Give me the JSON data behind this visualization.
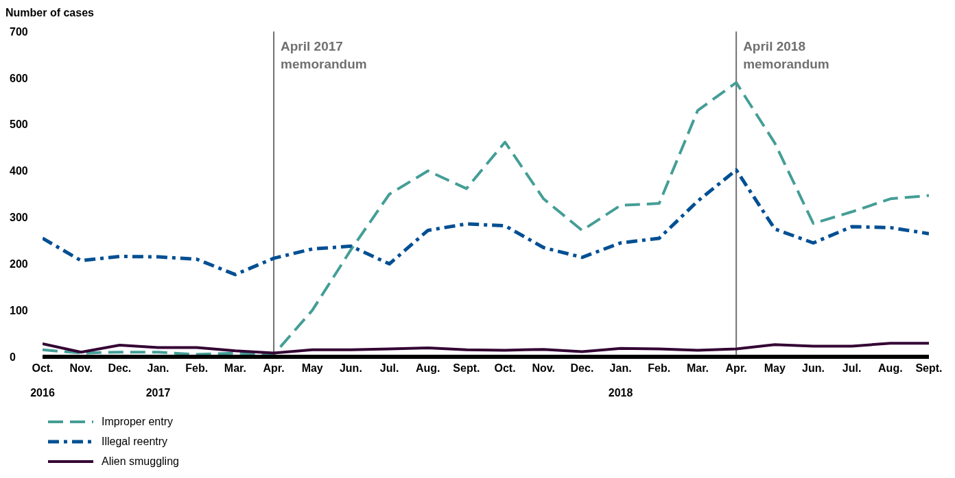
{
  "chart_data": {
    "type": "line",
    "ylabel": "Number of cases",
    "x": [
      "2016-10",
      "2016-11",
      "2016-12",
      "2017-01",
      "2017-02",
      "2017-03",
      "2017-04",
      "2017-05",
      "2017-06",
      "2017-07",
      "2017-08",
      "2017-09",
      "2017-10",
      "2017-11",
      "2017-12",
      "2018-01",
      "2018-02",
      "2018-03",
      "2018-04",
      "2018-05",
      "2018-06",
      "2018-07",
      "2018-08",
      "2018-09"
    ],
    "xlim": [
      "2016-10",
      "2018-09"
    ],
    "xticks": [
      {
        "value": "2016-10",
        "label": "Oct.\n2016"
      },
      {
        "value": "2016-11",
        "label": "Nov."
      },
      {
        "value": "2016-12",
        "label": "Dec."
      },
      {
        "value": "2017-01",
        "label": "Jan.\n2017"
      },
      {
        "value": "2017-02",
        "label": "Feb."
      },
      {
        "value": "2017-03",
        "label": "Mar."
      },
      {
        "value": "2017-04",
        "label": "Apr."
      },
      {
        "value": "2017-05",
        "label": "May"
      },
      {
        "value": "2017-06",
        "label": "Jun."
      },
      {
        "value": "2017-07",
        "label": "Jul."
      },
      {
        "value": "2017-08",
        "label": "Aug."
      },
      {
        "value": "2017-09",
        "label": "Sept."
      },
      {
        "value": "2017-10",
        "label": "Oct."
      },
      {
        "value": "2017-11",
        "label": "Nov."
      },
      {
        "value": "2017-12",
        "label": "Dec."
      },
      {
        "value": "2018-01",
        "label": "Jan.\n2018"
      },
      {
        "value": "2018-02",
        "label": "Feb."
      },
      {
        "value": "2018-03",
        "label": "Mar."
      },
      {
        "value": "2018-04",
        "label": "Apr."
      },
      {
        "value": "2018-05",
        "label": "May"
      },
      {
        "value": "2018-06",
        "label": "Jun."
      },
      {
        "value": "2018-07",
        "label": "Jul."
      },
      {
        "value": "2018-08",
        "label": "Aug."
      },
      {
        "value": "2018-09",
        "label": "Sept."
      }
    ],
    "ylim": [
      0,
      700
    ],
    "yticks": [
      0,
      100,
      200,
      300,
      400,
      500,
      600,
      700
    ],
    "grid": false,
    "legend": "bottom left",
    "marker": "none",
    "series": [
      {
        "name": "Improper entry",
        "color": "#449e96",
        "line_style": "dashed",
        "values": [
          15,
          8,
          10,
          10,
          5,
          8,
          5,
          100,
          230,
          350,
          400,
          362,
          462,
          340,
          272,
          326,
          330,
          530,
          590,
          460,
          287,
          312,
          340,
          347
        ]
      },
      {
        "name": "Illegal reentry",
        "color": "#004f93",
        "line_style": "dashdot",
        "values": [
          255,
          207,
          216,
          215,
          210,
          177,
          212,
          232,
          238,
          200,
          272,
          286,
          282,
          235,
          214,
          245,
          255,
          335,
          402,
          275,
          245,
          280,
          278,
          265
        ]
      },
      {
        "name": "Alien smuggling",
        "color": "#330033",
        "line_style": "solid",
        "values": [
          28,
          10,
          25,
          20,
          20,
          13,
          8,
          15,
          15,
          17,
          19,
          15,
          14,
          16,
          11,
          18,
          17,
          14,
          17,
          26,
          23,
          23,
          29,
          29
        ]
      }
    ],
    "ref_lines": [
      {
        "axis": "x",
        "value": "2017-04",
        "label": "April 2017\nmemorandum",
        "color": "#707070"
      },
      {
        "axis": "x",
        "value": "2018-04",
        "label": "April 2018\nmemorandum",
        "color": "#707070"
      }
    ]
  }
}
